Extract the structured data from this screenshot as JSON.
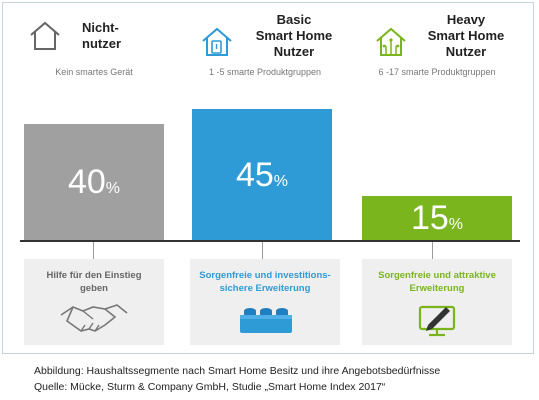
{
  "segments": [
    {
      "title": [
        "Nicht-",
        "nutzer"
      ],
      "subtitle": "Kein smartes Gerät",
      "value_text": "40",
      "unit": "%",
      "color": "#a0a0a0",
      "benefit": [
        "Hilfe für den Einstieg",
        "geben"
      ],
      "benefit_color": "#666666",
      "house_icon": "house-outline-icon",
      "benefit_icon": "handshake-icon"
    },
    {
      "title": [
        "Basic",
        "Smart Home",
        "Nutzer"
      ],
      "subtitle": "1 -5 smarte Produktgruppen",
      "value_text": "45",
      "unit": "%",
      "color": "#2e9ad6",
      "benefit": [
        "Sorgenfreie und investitions-",
        "sichere Erweiterung"
      ],
      "benefit_color": "#2e9ad6",
      "house_icon": "smart-house-icon",
      "benefit_icon": "building-block-icon"
    },
    {
      "title": [
        "Heavy",
        "Smart Home",
        "Nutzer"
      ],
      "subtitle": "6 -17 smarte Produktgruppen",
      "value_text": "15",
      "unit": "%",
      "color": "#7ab51d",
      "benefit": [
        "Sorgenfreie und attraktive",
        "Erweiterung"
      ],
      "benefit_color": "#7ab51d",
      "house_icon": "circuit-house-icon",
      "benefit_icon": "monitor-pen-icon"
    }
  ],
  "chart_data": {
    "type": "bar",
    "categories": [
      "Nicht-nutzer",
      "Basic Smart Home Nutzer",
      "Heavy Smart Home Nutzer"
    ],
    "values": [
      40,
      45,
      15
    ],
    "ylim": [
      0,
      45
    ],
    "unit": "%",
    "grid": false,
    "legend": "none"
  },
  "caption": {
    "line1": "Abbildung: Haushaltssegmente nach Smart Home Besitz und ihre Angebotsbedürfnisse",
    "line2": "Quelle: Mücke, Sturm & Company GmbH, Studie „Smart Home Index 2017“"
  }
}
